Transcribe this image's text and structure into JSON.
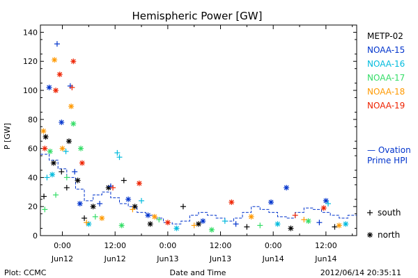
{
  "chart_data": {
    "type": "scatter",
    "title": "Hemispheric Power [GW]",
    "ylabel": "P [GW]",
    "xlabel": "Date and Time",
    "ylim": [
      0,
      145
    ],
    "yticks": [
      0,
      20,
      40,
      60,
      80,
      100,
      120,
      140
    ],
    "xlim_hours": [
      -5,
      67
    ],
    "xticks": [
      {
        "hour": 0,
        "time": "0:00",
        "date": "Jun12"
      },
      {
        "hour": 12,
        "time": "12:00",
        "date": "Jun12"
      },
      {
        "hour": 24,
        "time": "0:00",
        "date": "Jun13"
      },
      {
        "hour": 36,
        "time": "12:00",
        "date": "Jun13"
      },
      {
        "hour": 48,
        "time": "0:00",
        "date": "Jun14"
      },
      {
        "hour": 60,
        "time": "12:00",
        "date": "Jun14"
      }
    ],
    "series": [
      {
        "name": "METP-02",
        "color": "#000000"
      },
      {
        "name": "NOAA-15",
        "color": "#0033cc"
      },
      {
        "name": "NOAA-16",
        "color": "#00bbdd"
      },
      {
        "name": "NOAA-17",
        "color": "#33dd66"
      },
      {
        "name": "NOAA-18",
        "color": "#ff9900"
      },
      {
        "name": "NOAA-19",
        "color": "#ee2200"
      }
    ],
    "points": [
      {
        "x": -4.2,
        "y": 27,
        "s": 0,
        "m": "plus"
      },
      {
        "x": -3.8,
        "y": 68,
        "s": 0,
        "m": "star"
      },
      {
        "x": -2.0,
        "y": 50,
        "s": 0,
        "m": "star"
      },
      {
        "x": -0.2,
        "y": 44,
        "s": 0,
        "m": "plus"
      },
      {
        "x": 1.5,
        "y": 65,
        "s": 0,
        "m": "star"
      },
      {
        "x": 1.0,
        "y": 33,
        "s": 0,
        "m": "plus"
      },
      {
        "x": 3.5,
        "y": 38,
        "s": 0,
        "m": "star"
      },
      {
        "x": 5.0,
        "y": 12,
        "s": 0,
        "m": "plus"
      },
      {
        "x": 7.0,
        "y": 20,
        "s": 0,
        "m": "star"
      },
      {
        "x": 10.5,
        "y": 33,
        "s": 0,
        "m": "star"
      },
      {
        "x": 14.0,
        "y": 38,
        "s": 0,
        "m": "plus"
      },
      {
        "x": 16.5,
        "y": 20,
        "s": 0,
        "m": "star"
      },
      {
        "x": 20.0,
        "y": 8,
        "s": 0,
        "m": "star"
      },
      {
        "x": 27.5,
        "y": 20,
        "s": 0,
        "m": "plus"
      },
      {
        "x": 31.0,
        "y": 8,
        "s": 0,
        "m": "star"
      },
      {
        "x": 42.0,
        "y": 6,
        "s": 0,
        "m": "plus"
      },
      {
        "x": 52.0,
        "y": 5,
        "s": 0,
        "m": "star"
      },
      {
        "x": 62.0,
        "y": 6,
        "s": 0,
        "m": "plus"
      },
      {
        "x": -3.0,
        "y": 102,
        "s": 1,
        "m": "star"
      },
      {
        "x": -1.2,
        "y": 132,
        "s": 1,
        "m": "plus"
      },
      {
        "x": -0.2,
        "y": 78,
        "s": 1,
        "m": "star"
      },
      {
        "x": 1.8,
        "y": 103,
        "s": 1,
        "m": "plus"
      },
      {
        "x": 2.8,
        "y": 44,
        "s": 1,
        "m": "plus"
      },
      {
        "x": 4.0,
        "y": 22,
        "s": 1,
        "m": "star"
      },
      {
        "x": 8.5,
        "y": 22,
        "s": 1,
        "m": "plus"
      },
      {
        "x": 11.0,
        "y": 34,
        "s": 1,
        "m": "plus"
      },
      {
        "x": 15.0,
        "y": 25,
        "s": 1,
        "m": "star"
      },
      {
        "x": 19.5,
        "y": 14,
        "s": 1,
        "m": "star"
      },
      {
        "x": 32.0,
        "y": 10,
        "s": 1,
        "m": "star"
      },
      {
        "x": 39.5,
        "y": 8,
        "s": 1,
        "m": "plus"
      },
      {
        "x": 47.5,
        "y": 23,
        "s": 1,
        "m": "star"
      },
      {
        "x": 51.0,
        "y": 33,
        "s": 1,
        "m": "star"
      },
      {
        "x": 58.5,
        "y": 9,
        "s": 1,
        "m": "plus"
      },
      {
        "x": 60.0,
        "y": 24,
        "s": 1,
        "m": "star"
      },
      {
        "x": -3.5,
        "y": 40,
        "s": 2,
        "m": "plus"
      },
      {
        "x": -2.3,
        "y": 42,
        "s": 2,
        "m": "star"
      },
      {
        "x": 0.8,
        "y": 58,
        "s": 2,
        "m": "plus"
      },
      {
        "x": 6.0,
        "y": 8,
        "s": 2,
        "m": "star"
      },
      {
        "x": 12.5,
        "y": 57,
        "s": 2,
        "m": "plus"
      },
      {
        "x": 13.0,
        "y": 54,
        "s": 2,
        "m": "plus"
      },
      {
        "x": 18.0,
        "y": 24,
        "s": 2,
        "m": "plus"
      },
      {
        "x": 26.0,
        "y": 5,
        "s": 2,
        "m": "star"
      },
      {
        "x": 37.0,
        "y": 10,
        "s": 2,
        "m": "plus"
      },
      {
        "x": 49.0,
        "y": 8,
        "s": 2,
        "m": "star"
      },
      {
        "x": 60.5,
        "y": 22,
        "s": 2,
        "m": "plus"
      },
      {
        "x": 64.5,
        "y": 8,
        "s": 2,
        "m": "star"
      },
      {
        "x": -4.0,
        "y": 18,
        "s": 3,
        "m": "plus"
      },
      {
        "x": -2.8,
        "y": 58,
        "s": 3,
        "m": "star"
      },
      {
        "x": -1.5,
        "y": 28,
        "s": 3,
        "m": "plus"
      },
      {
        "x": 1.0,
        "y": 40,
        "s": 3,
        "m": "plus"
      },
      {
        "x": 2.5,
        "y": 77,
        "s": 3,
        "m": "star"
      },
      {
        "x": 4.2,
        "y": 60,
        "s": 3,
        "m": "star"
      },
      {
        "x": 7.5,
        "y": 13,
        "s": 3,
        "m": "plus"
      },
      {
        "x": 13.5,
        "y": 7,
        "s": 3,
        "m": "star"
      },
      {
        "x": 22.0,
        "y": 11,
        "s": 3,
        "m": "plus"
      },
      {
        "x": 34.0,
        "y": 4,
        "s": 3,
        "m": "star"
      },
      {
        "x": 45.0,
        "y": 7,
        "s": 3,
        "m": "plus"
      },
      {
        "x": 56.0,
        "y": 10,
        "s": 3,
        "m": "star"
      },
      {
        "x": -4.3,
        "y": 72,
        "s": 4,
        "m": "star"
      },
      {
        "x": -1.8,
        "y": 121,
        "s": 4,
        "m": "star"
      },
      {
        "x": 0.0,
        "y": 60,
        "s": 4,
        "m": "star"
      },
      {
        "x": 2.0,
        "y": 89,
        "s": 4,
        "m": "star"
      },
      {
        "x": 5.5,
        "y": 9,
        "s": 4,
        "m": "plus"
      },
      {
        "x": 9.0,
        "y": 12,
        "s": 4,
        "m": "star"
      },
      {
        "x": 16.0,
        "y": 18,
        "s": 4,
        "m": "plus"
      },
      {
        "x": 21.0,
        "y": 13,
        "s": 4,
        "m": "star"
      },
      {
        "x": 30.0,
        "y": 7,
        "s": 4,
        "m": "plus"
      },
      {
        "x": 43.0,
        "y": 13,
        "s": 4,
        "m": "star"
      },
      {
        "x": 55.0,
        "y": 11,
        "s": 4,
        "m": "plus"
      },
      {
        "x": 63.0,
        "y": 7,
        "s": 4,
        "m": "star"
      },
      {
        "x": -4.0,
        "y": 60,
        "s": 5,
        "m": "star"
      },
      {
        "x": -1.5,
        "y": 100,
        "s": 5,
        "m": "star"
      },
      {
        "x": -0.6,
        "y": 111,
        "s": 5,
        "m": "star"
      },
      {
        "x": 2.5,
        "y": 120,
        "s": 5,
        "m": "star"
      },
      {
        "x": 2.2,
        "y": 102,
        "s": 5,
        "m": "plus"
      },
      {
        "x": 4.5,
        "y": 50,
        "s": 5,
        "m": "star"
      },
      {
        "x": 11.5,
        "y": 33,
        "s": 5,
        "m": "plus"
      },
      {
        "x": 17.5,
        "y": 36,
        "s": 5,
        "m": "star"
      },
      {
        "x": 24.0,
        "y": 9,
        "s": 5,
        "m": "star"
      },
      {
        "x": 38.5,
        "y": 23,
        "s": 5,
        "m": "star"
      },
      {
        "x": 53.0,
        "y": 14,
        "s": 5,
        "m": "plus"
      },
      {
        "x": 59.5,
        "y": 19,
        "s": 5,
        "m": "star"
      }
    ],
    "ovation": {
      "name": "— Ovation Prime HPI",
      "color": "#0033cc",
      "steps": [
        [
          -5,
          56
        ],
        [
          -3,
          52
        ],
        [
          -1,
          46
        ],
        [
          1,
          40
        ],
        [
          3,
          32
        ],
        [
          5,
          24
        ],
        [
          7,
          28
        ],
        [
          9,
          30
        ],
        [
          11,
          26
        ],
        [
          13,
          22
        ],
        [
          15,
          20
        ],
        [
          17,
          16
        ],
        [
          19,
          14
        ],
        [
          21,
          12
        ],
        [
          23,
          9
        ],
        [
          25,
          8
        ],
        [
          27,
          10
        ],
        [
          29,
          14
        ],
        [
          31,
          16
        ],
        [
          33,
          14
        ],
        [
          35,
          12
        ],
        [
          37,
          10
        ],
        [
          39,
          12
        ],
        [
          41,
          16
        ],
        [
          43,
          20
        ],
        [
          45,
          18
        ],
        [
          47,
          16
        ],
        [
          49,
          13
        ],
        [
          51,
          12
        ],
        [
          53,
          16
        ],
        [
          55,
          19
        ],
        [
          57,
          18
        ],
        [
          59,
          16
        ],
        [
          61,
          14
        ],
        [
          63,
          12
        ],
        [
          65,
          14
        ],
        [
          67,
          14
        ]
      ]
    },
    "marker_legend": {
      "plus": "south",
      "star": "north"
    }
  },
  "footer": {
    "source": "Plot: CCMC",
    "timestamp": "2012/06/14 20:35:11"
  }
}
